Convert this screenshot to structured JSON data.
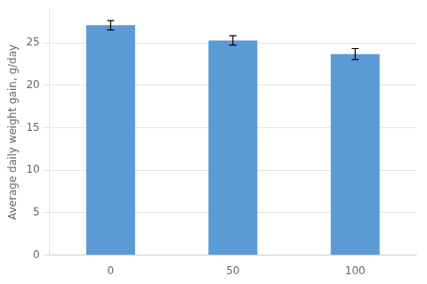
{
  "chart_data": {
    "type": "bar",
    "ylabel": "Average daily weight gain, g/day",
    "categories": [
      "0",
      "50",
      "100"
    ],
    "values": [
      27.1,
      25.3,
      23.7
    ],
    "errors": [
      0.55,
      0.55,
      0.65
    ],
    "color": "#5B9BD5",
    "ylim": [
      0,
      29
    ],
    "yticks": [
      0,
      5,
      10,
      15,
      20,
      25
    ],
    "grid": true
  }
}
